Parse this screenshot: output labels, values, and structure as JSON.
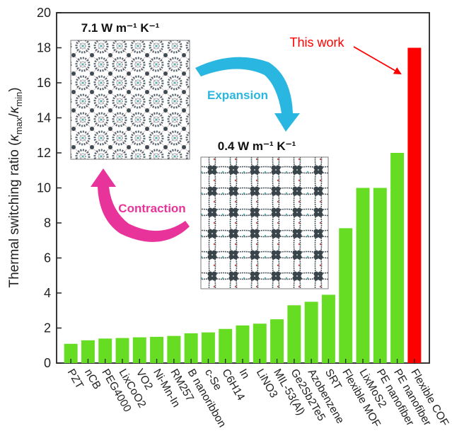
{
  "chart_data": {
    "type": "bar",
    "ylabel": "Thermal switching ratio (κ_max/κ_min)",
    "ylim": [
      0,
      20
    ],
    "yticks": [
      0,
      2,
      4,
      6,
      8,
      10,
      12,
      14,
      16,
      18,
      20
    ],
    "grid": false,
    "categories": [
      "PZT",
      "nCB",
      "PEG4000",
      "LixCoO2",
      "VO2",
      "Ni-Mn-In",
      "RM257",
      "B nanoribbon",
      "c-Se",
      "C6H14",
      "In",
      "LiNO3",
      "MIL-53(Al)",
      "Ge2Sb2Te5",
      "Azobenzene",
      "SRT",
      "Flexible MOF",
      "LixMoS2",
      "PE nanofiber",
      "PE nanofiber",
      "Flexible COF"
    ],
    "values": [
      1.1,
      1.3,
      1.4,
      1.43,
      1.47,
      1.5,
      1.55,
      1.7,
      1.75,
      1.95,
      2.15,
      2.25,
      2.5,
      3.3,
      3.5,
      3.9,
      7.7,
      10.0,
      10.0,
      12.0,
      18.0
    ],
    "bar_color": "#66dd22",
    "highlight_index": 20,
    "highlight_color": "#ff0000",
    "annotations": {
      "high_conductivity": "7.1 W m⁻¹ K⁻¹",
      "low_conductivity": "0.4 W m⁻¹ K⁻¹",
      "expansion": "Expansion",
      "contraction": "Contraction",
      "this_work": "This work"
    },
    "colors": {
      "expansion": "#29b6e0",
      "contraction": "#e8339a",
      "this_work": "#ff0000"
    }
  }
}
